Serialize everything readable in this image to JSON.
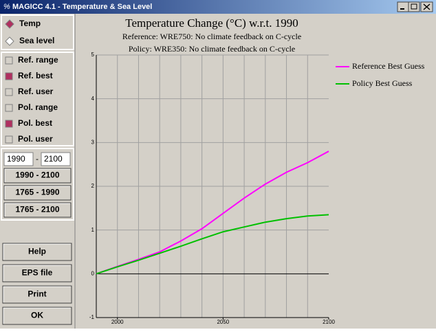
{
  "window": {
    "title": "MAGICC 4.1 - Temperature & Sea Level"
  },
  "sidebar": {
    "radios": [
      {
        "label": "Temp",
        "checked": true
      },
      {
        "label": "Sea level",
        "checked": false
      }
    ],
    "checkboxes": [
      {
        "label": "Ref. range",
        "checked": false
      },
      {
        "label": "Ref. best",
        "checked": true
      },
      {
        "label": "Ref. user",
        "checked": false
      },
      {
        "label": "Pol. range",
        "checked": false
      },
      {
        "label": "Pol. best",
        "checked": true
      },
      {
        "label": "Pol. user",
        "checked": false
      }
    ],
    "year_from": "1990",
    "year_sep": "-",
    "year_to": "2100",
    "range_buttons": [
      "1990 - 2100",
      "1765 - 1990",
      "1765 - 2100"
    ],
    "action_buttons": [
      "Help",
      "EPS file",
      "Print",
      "OK"
    ]
  },
  "chart_data": {
    "type": "line",
    "title": "Temperature Change (°C) w.r.t. 1990",
    "subtitle": [
      "Reference: WRE750: No climate feedback on C-cycle",
      "Policy: WRE350: No climate feedback on C-cycle"
    ],
    "x": [
      1990,
      2000,
      2010,
      2020,
      2030,
      2040,
      2050,
      2060,
      2070,
      2080,
      2090,
      2100
    ],
    "series": [
      {
        "name": "Reference Best Guess",
        "color": "#ff00ff",
        "values": [
          0,
          0.17,
          0.33,
          0.5,
          0.75,
          1.03,
          1.38,
          1.73,
          2.05,
          2.32,
          2.54,
          2.8
        ]
      },
      {
        "name": "Policy Best Guess",
        "color": "#00c000",
        "values": [
          0,
          0.16,
          0.31,
          0.47,
          0.63,
          0.8,
          0.96,
          1.07,
          1.18,
          1.26,
          1.32,
          1.35
        ]
      }
    ],
    "xlim": [
      1990,
      2100
    ],
    "xticks": [
      2000,
      2050,
      2100
    ],
    "xgrid": [
      2000,
      2010,
      2020,
      2030,
      2040,
      2050,
      2060,
      2070,
      2080,
      2090
    ],
    "ylim": [
      -1,
      5
    ],
    "yticks": [
      -1,
      0,
      1,
      2,
      3,
      4,
      5
    ],
    "grid": true
  }
}
